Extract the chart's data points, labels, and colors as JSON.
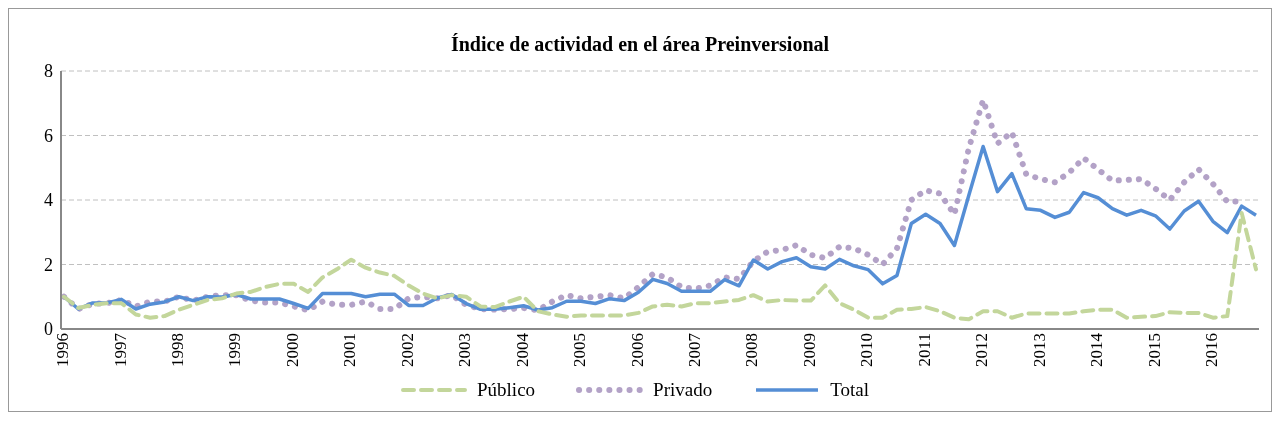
{
  "chart_data": {
    "type": "line",
    "title": "Índice de actividad en el área Preinversional",
    "categories": [
      "1996",
      null,
      null,
      null,
      "1997",
      null,
      null,
      null,
      "1998",
      null,
      null,
      null,
      "1999",
      null,
      null,
      null,
      "2000",
      null,
      null,
      null,
      "2001",
      null,
      null,
      null,
      "2002",
      null,
      null,
      null,
      "2003",
      null,
      null,
      null,
      "2004",
      null,
      null,
      null,
      "2005",
      null,
      null,
      null,
      "2006",
      null,
      null,
      null,
      "2007",
      null,
      null,
      null,
      "2008",
      null,
      null,
      null,
      "2009",
      null,
      null,
      null,
      "2010",
      null,
      null,
      null,
      "2011",
      null,
      null,
      null,
      "2012",
      null,
      null,
      null,
      "2013",
      null,
      null,
      null,
      "2014",
      null,
      null,
      null,
      "2015",
      null,
      null,
      null,
      "2016",
      null,
      null,
      null
    ],
    "series": [
      {
        "name": "Público",
        "color": "#c3d69b",
        "line_style": "dashed",
        "values": [
          1.0,
          0.65,
          0.75,
          0.8,
          0.8,
          0.45,
          0.35,
          0.4,
          0.6,
          0.75,
          0.9,
          0.95,
          1.1,
          1.15,
          1.3,
          1.4,
          1.4,
          1.15,
          1.6,
          1.85,
          2.15,
          1.9,
          1.75,
          1.65,
          1.35,
          1.1,
          0.95,
          1.05,
          1.0,
          0.7,
          0.68,
          0.85,
          1.0,
          0.55,
          0.45,
          0.38,
          0.42,
          0.42,
          0.42,
          0.42,
          0.5,
          0.7,
          0.75,
          0.7,
          0.8,
          0.8,
          0.85,
          0.9,
          1.05,
          0.85,
          0.9,
          0.88,
          0.88,
          1.35,
          0.8,
          0.6,
          0.35,
          0.35,
          0.6,
          0.62,
          0.68,
          0.55,
          0.35,
          0.3,
          0.55,
          0.55,
          0.35,
          0.48,
          0.48,
          0.48,
          0.48,
          0.55,
          0.6,
          0.6,
          0.35,
          0.38,
          0.4,
          0.52,
          0.5,
          0.5,
          0.35,
          0.4,
          3.6,
          1.85
        ]
      },
      {
        "name": "Privado",
        "color": "#b3a2c7",
        "line_style": "dotted",
        "values": [
          1.0,
          0.62,
          0.78,
          0.8,
          0.9,
          0.7,
          0.85,
          0.85,
          1.0,
          0.88,
          1.0,
          1.05,
          1.05,
          0.88,
          0.82,
          0.82,
          0.7,
          0.58,
          0.85,
          0.75,
          0.75,
          0.85,
          0.62,
          0.62,
          0.95,
          1.0,
          0.95,
          1.05,
          0.75,
          0.62,
          0.6,
          0.62,
          0.65,
          0.58,
          0.85,
          1.05,
          0.95,
          1.0,
          1.05,
          0.95,
          1.3,
          1.7,
          1.6,
          1.3,
          1.25,
          1.35,
          1.6,
          1.55,
          2.1,
          2.4,
          2.45,
          2.6,
          2.3,
          2.2,
          2.55,
          2.5,
          2.3,
          2.0,
          2.5,
          4.0,
          4.3,
          4.2,
          3.55,
          5.6,
          7.1,
          5.75,
          6.1,
          4.8,
          4.65,
          4.55,
          4.85,
          5.3,
          4.95,
          4.6,
          4.62,
          4.65,
          4.35,
          4.0,
          4.55,
          4.95,
          4.5,
          3.95,
          3.95,
          null
        ]
      },
      {
        "name": "Total",
        "color": "#558ed5",
        "line_style": "solid",
        "values": [
          1.0,
          0.62,
          0.81,
          0.81,
          0.92,
          0.62,
          0.77,
          0.84,
          1.0,
          0.88,
          1.0,
          0.99,
          1.07,
          0.93,
          0.93,
          0.93,
          0.79,
          0.64,
          1.1,
          1.1,
          1.1,
          1.0,
          1.08,
          1.08,
          0.73,
          0.73,
          0.96,
          1.07,
          0.79,
          0.61,
          0.61,
          0.66,
          0.72,
          0.59,
          0.66,
          0.86,
          0.86,
          0.79,
          0.94,
          0.88,
          1.14,
          1.54,
          1.41,
          1.17,
          1.17,
          1.17,
          1.53,
          1.34,
          2.14,
          1.86,
          2.09,
          2.21,
          1.93,
          1.86,
          2.16,
          1.96,
          1.84,
          1.4,
          1.66,
          3.27,
          3.56,
          3.27,
          2.59,
          4.14,
          5.66,
          4.26,
          4.82,
          3.73,
          3.68,
          3.46,
          3.62,
          4.23,
          4.07,
          3.73,
          3.53,
          3.68,
          3.51,
          3.1,
          3.66,
          3.96,
          3.34,
          2.99,
          3.81,
          3.53
        ]
      }
    ],
    "ylim": [
      0,
      8
    ],
    "yticks": [
      0,
      2,
      4,
      6,
      8
    ],
    "grid": "y",
    "legend": "bottom",
    "marker": "none"
  }
}
